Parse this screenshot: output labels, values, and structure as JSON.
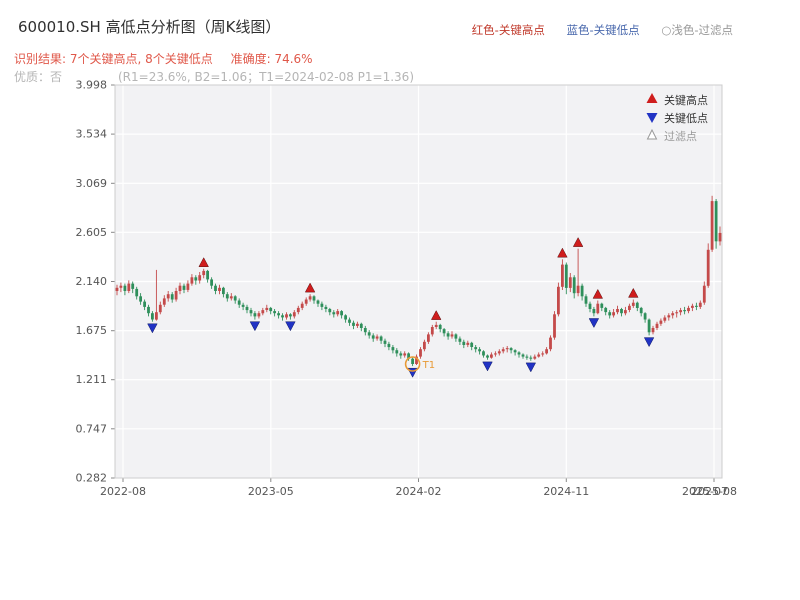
{
  "header": {
    "title": "600010.SH 高低点分析图（周K线图）",
    "legend_high": "红色-关键高点",
    "legend_low": "蓝色-关键低点",
    "legend_filtered": "○浅色-过滤点",
    "result_text": "识别结果: 7个关键高点, 8个关键低点",
    "accuracy_text": "准确度: 74.6%",
    "quality_label": "优质：否",
    "quality_detail": "(R1=23.6%, B2=1.06；T1=2024-02-08 P1=1.36)"
  },
  "colors": {
    "up_candle": "#c44a4a",
    "down_candle": "#2f8f5b",
    "marker_high": "#cf1d1d",
    "marker_low": "#2133c4",
    "filtered_marker_edge": "#999999",
    "t1_orange": "#e89a35",
    "plot_bg": "#f2f2f4",
    "grid_line": "#ffffff",
    "plot_border": "#cccccc",
    "tick_text": "#555555",
    "title_text": "#2f2f2f",
    "result_text": "#e0584a",
    "quality_text": "#b5b5b5",
    "legend_red": "#c0392b",
    "legend_blue": "#4a69ad",
    "legend_gray": "#999999",
    "legend_label_text": "#333333"
  },
  "chart_data": {
    "type": "candlestick",
    "title": "600010.SH 高低点分析图（周K线图）",
    "symbol": "600010.SH",
    "period": "周K线",
    "key_high_count": 7,
    "key_low_count": 8,
    "accuracy_pct": 74.6,
    "x_tick_labels": [
      "2022-08",
      "2023-05",
      "2024-02",
      "2024-11",
      "2025-08"
    ],
    "x_overlap_label": "2025-07",
    "y_ticks": [
      3.998,
      3.534,
      3.069,
      2.605,
      2.14,
      1.675,
      1.211,
      0.747,
      0.282
    ],
    "y_min": 0.282,
    "y_max": 3.998,
    "legend": {
      "high": "关键高点",
      "low": "关键低点",
      "filtered": "过滤点"
    },
    "t1": {
      "index": 75,
      "price": 1.36,
      "label": "T1",
      "date": "2024-02-08"
    },
    "key_highs": [
      {
        "index": 22,
        "price": 2.28
      },
      {
        "index": 49,
        "price": 2.04
      },
      {
        "index": 81,
        "price": 1.78
      },
      {
        "index": 113,
        "price": 2.37
      },
      {
        "index": 117,
        "price": 2.47
      },
      {
        "index": 122,
        "price": 1.98
      },
      {
        "index": 131,
        "price": 1.99
      }
    ],
    "key_lows": [
      {
        "index": 9,
        "price": 1.74
      },
      {
        "index": 35,
        "price": 1.76
      },
      {
        "index": 44,
        "price": 1.76
      },
      {
        "index": 75,
        "price": 1.32
      },
      {
        "index": 94,
        "price": 1.38
      },
      {
        "index": 105,
        "price": 1.37
      },
      {
        "index": 121,
        "price": 1.79
      },
      {
        "index": 135,
        "price": 1.61
      }
    ],
    "candles": [
      [
        2.05,
        2.11,
        2.01,
        2.08
      ],
      [
        2.08,
        2.13,
        2.04,
        2.1
      ],
      [
        2.1,
        2.12,
        2.01,
        2.05
      ],
      [
        2.05,
        2.15,
        2.03,
        2.12
      ],
      [
        2.12,
        2.14,
        2.03,
        2.07
      ],
      [
        2.07,
        2.09,
        1.97,
        2.0
      ],
      [
        2.0,
        2.03,
        1.92,
        1.95
      ],
      [
        1.95,
        1.97,
        1.87,
        1.9
      ],
      [
        1.9,
        1.92,
        1.81,
        1.84
      ],
      [
        1.84,
        1.86,
        1.76,
        1.78
      ],
      [
        1.78,
        2.25,
        1.77,
        1.85
      ],
      [
        1.85,
        1.95,
        1.83,
        1.92
      ],
      [
        1.92,
        2.01,
        1.9,
        1.98
      ],
      [
        1.98,
        2.05,
        1.95,
        2.02
      ],
      [
        2.02,
        2.04,
        1.94,
        1.97
      ],
      [
        1.97,
        2.08,
        1.95,
        2.05
      ],
      [
        2.05,
        2.13,
        2.02,
        2.1
      ],
      [
        2.1,
        2.12,
        2.03,
        2.06
      ],
      [
        2.06,
        2.15,
        2.04,
        2.12
      ],
      [
        2.12,
        2.21,
        2.1,
        2.18
      ],
      [
        2.18,
        2.2,
        2.11,
        2.15
      ],
      [
        2.15,
        2.23,
        2.12,
        2.2
      ],
      [
        2.2,
        2.26,
        2.17,
        2.24
      ],
      [
        2.24,
        2.25,
        2.13,
        2.16
      ],
      [
        2.16,
        2.18,
        2.07,
        2.1
      ],
      [
        2.1,
        2.12,
        2.02,
        2.05
      ],
      [
        2.05,
        2.11,
        2.02,
        2.08
      ],
      [
        2.08,
        2.09,
        1.99,
        2.02
      ],
      [
        2.02,
        2.04,
        1.95,
        1.98
      ],
      [
        1.98,
        2.03,
        1.96,
        2.0
      ],
      [
        2.0,
        2.01,
        1.93,
        1.96
      ],
      [
        1.96,
        1.98,
        1.89,
        1.92
      ],
      [
        1.92,
        1.94,
        1.87,
        1.9
      ],
      [
        1.9,
        1.92,
        1.84,
        1.87
      ],
      [
        1.87,
        1.89,
        1.81,
        1.84
      ],
      [
        1.84,
        1.86,
        1.78,
        1.81
      ],
      [
        1.81,
        1.86,
        1.79,
        1.84
      ],
      [
        1.84,
        1.89,
        1.82,
        1.87
      ],
      [
        1.87,
        1.92,
        1.85,
        1.89
      ],
      [
        1.89,
        1.9,
        1.83,
        1.86
      ],
      [
        1.86,
        1.88,
        1.81,
        1.84
      ],
      [
        1.84,
        1.86,
        1.79,
        1.82
      ],
      [
        1.82,
        1.84,
        1.77,
        1.8
      ],
      [
        1.8,
        1.85,
        1.78,
        1.83
      ],
      [
        1.83,
        1.84,
        1.78,
        1.81
      ],
      [
        1.81,
        1.87,
        1.79,
        1.85
      ],
      [
        1.85,
        1.91,
        1.83,
        1.89
      ],
      [
        1.89,
        1.95,
        1.87,
        1.93
      ],
      [
        1.93,
        1.99,
        1.91,
        1.97
      ],
      [
        1.97,
        2.02,
        1.95,
        2.0
      ],
      [
        2.0,
        2.01,
        1.93,
        1.96
      ],
      [
        1.96,
        1.97,
        1.9,
        1.93
      ],
      [
        1.93,
        1.95,
        1.87,
        1.9
      ],
      [
        1.9,
        1.92,
        1.85,
        1.88
      ],
      [
        1.88,
        1.89,
        1.82,
        1.85
      ],
      [
        1.85,
        1.87,
        1.8,
        1.83
      ],
      [
        1.83,
        1.88,
        1.81,
        1.86
      ],
      [
        1.86,
        1.87,
        1.79,
        1.82
      ],
      [
        1.82,
        1.83,
        1.75,
        1.78
      ],
      [
        1.78,
        1.8,
        1.72,
        1.75
      ],
      [
        1.75,
        1.77,
        1.69,
        1.72
      ],
      [
        1.72,
        1.76,
        1.7,
        1.74
      ],
      [
        1.74,
        1.75,
        1.67,
        1.7
      ],
      [
        1.7,
        1.72,
        1.63,
        1.66
      ],
      [
        1.66,
        1.68,
        1.6,
        1.63
      ],
      [
        1.63,
        1.65,
        1.57,
        1.6
      ],
      [
        1.6,
        1.64,
        1.58,
        1.62
      ],
      [
        1.62,
        1.63,
        1.55,
        1.58
      ],
      [
        1.58,
        1.6,
        1.52,
        1.55
      ],
      [
        1.55,
        1.57,
        1.49,
        1.52
      ],
      [
        1.52,
        1.54,
        1.46,
        1.49
      ],
      [
        1.49,
        1.51,
        1.43,
        1.46
      ],
      [
        1.46,
        1.48,
        1.41,
        1.44
      ],
      [
        1.44,
        1.48,
        1.42,
        1.46
      ],
      [
        1.46,
        1.47,
        1.39,
        1.41
      ],
      [
        1.41,
        1.42,
        1.34,
        1.36
      ],
      [
        1.36,
        1.45,
        1.35,
        1.43
      ],
      [
        1.43,
        1.52,
        1.41,
        1.5
      ],
      [
        1.5,
        1.59,
        1.48,
        1.57
      ],
      [
        1.57,
        1.66,
        1.55,
        1.64
      ],
      [
        1.64,
        1.73,
        1.62,
        1.71
      ],
      [
        1.71,
        1.76,
        1.69,
        1.73
      ],
      [
        1.73,
        1.74,
        1.66,
        1.69
      ],
      [
        1.69,
        1.7,
        1.62,
        1.65
      ],
      [
        1.65,
        1.67,
        1.59,
        1.62
      ],
      [
        1.62,
        1.67,
        1.6,
        1.64
      ],
      [
        1.64,
        1.65,
        1.57,
        1.6
      ],
      [
        1.6,
        1.62,
        1.54,
        1.57
      ],
      [
        1.57,
        1.59,
        1.51,
        1.54
      ],
      [
        1.54,
        1.58,
        1.52,
        1.56
      ],
      [
        1.56,
        1.57,
        1.49,
        1.52
      ],
      [
        1.52,
        1.54,
        1.47,
        1.5
      ],
      [
        1.5,
        1.52,
        1.45,
        1.48
      ],
      [
        1.48,
        1.49,
        1.42,
        1.44
      ],
      [
        1.44,
        1.45,
        1.4,
        1.42
      ],
      [
        1.42,
        1.47,
        1.41,
        1.45
      ],
      [
        1.45,
        1.48,
        1.43,
        1.46
      ],
      [
        1.46,
        1.5,
        1.44,
        1.48
      ],
      [
        1.48,
        1.52,
        1.46,
        1.5
      ],
      [
        1.5,
        1.53,
        1.47,
        1.51
      ],
      [
        1.51,
        1.52,
        1.46,
        1.49
      ],
      [
        1.49,
        1.5,
        1.44,
        1.47
      ],
      [
        1.47,
        1.48,
        1.42,
        1.45
      ],
      [
        1.45,
        1.46,
        1.41,
        1.43
      ],
      [
        1.43,
        1.45,
        1.4,
        1.42
      ],
      [
        1.42,
        1.44,
        1.39,
        1.41
      ],
      [
        1.41,
        1.45,
        1.4,
        1.43
      ],
      [
        1.43,
        1.47,
        1.42,
        1.45
      ],
      [
        1.45,
        1.48,
        1.43,
        1.46
      ],
      [
        1.46,
        1.52,
        1.45,
        1.5
      ],
      [
        1.5,
        1.63,
        1.48,
        1.61
      ],
      [
        1.61,
        1.86,
        1.59,
        1.83
      ],
      [
        1.83,
        2.13,
        1.81,
        2.09
      ],
      [
        2.09,
        2.35,
        2.06,
        2.3
      ],
      [
        2.3,
        2.32,
        2.02,
        2.08
      ],
      [
        2.08,
        2.22,
        2.04,
        2.18
      ],
      [
        2.18,
        2.2,
        1.98,
        2.03
      ],
      [
        2.03,
        2.45,
        2.0,
        2.1
      ],
      [
        2.1,
        2.12,
        1.96,
        2.0
      ],
      [
        2.0,
        2.02,
        1.9,
        1.93
      ],
      [
        1.93,
        1.95,
        1.85,
        1.88
      ],
      [
        1.88,
        1.9,
        1.81,
        1.84
      ],
      [
        1.84,
        1.96,
        1.83,
        1.93
      ],
      [
        1.93,
        1.94,
        1.86,
        1.89
      ],
      [
        1.89,
        1.9,
        1.82,
        1.85
      ],
      [
        1.85,
        1.87,
        1.79,
        1.82
      ],
      [
        1.82,
        1.88,
        1.8,
        1.85
      ],
      [
        1.85,
        1.91,
        1.83,
        1.88
      ],
      [
        1.88,
        1.89,
        1.81,
        1.84
      ],
      [
        1.84,
        1.9,
        1.82,
        1.87
      ],
      [
        1.87,
        1.93,
        1.85,
        1.91
      ],
      [
        1.91,
        1.97,
        1.89,
        1.94
      ],
      [
        1.94,
        1.95,
        1.86,
        1.89
      ],
      [
        1.89,
        1.9,
        1.81,
        1.84
      ],
      [
        1.84,
        1.85,
        1.75,
        1.78
      ],
      [
        1.78,
        1.79,
        1.63,
        1.66
      ],
      [
        1.66,
        1.72,
        1.64,
        1.7
      ],
      [
        1.7,
        1.76,
        1.68,
        1.74
      ],
      [
        1.74,
        1.79,
        1.72,
        1.77
      ],
      [
        1.77,
        1.82,
        1.75,
        1.8
      ],
      [
        1.8,
        1.84,
        1.77,
        1.82
      ],
      [
        1.82,
        1.86,
        1.79,
        1.84
      ],
      [
        1.84,
        1.87,
        1.8,
        1.85
      ],
      [
        1.85,
        1.89,
        1.82,
        1.87
      ],
      [
        1.87,
        1.9,
        1.83,
        1.86
      ],
      [
        1.86,
        1.91,
        1.84,
        1.89
      ],
      [
        1.89,
        1.93,
        1.86,
        1.91
      ],
      [
        1.91,
        1.94,
        1.87,
        1.9
      ],
      [
        1.9,
        1.96,
        1.88,
        1.94
      ],
      [
        1.94,
        2.14,
        1.92,
        2.1
      ],
      [
        2.1,
        2.5,
        2.08,
        2.44
      ],
      [
        2.44,
        2.95,
        2.42,
        2.9
      ],
      [
        2.9,
        2.92,
        2.45,
        2.52
      ],
      [
        2.52,
        2.66,
        2.48,
        2.6
      ]
    ]
  }
}
